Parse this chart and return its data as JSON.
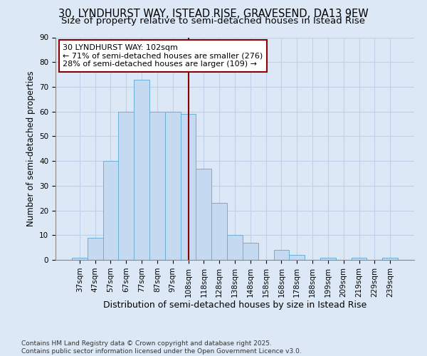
{
  "title": "30, LYNDHURST WAY, ISTEAD RISE, GRAVESEND, DA13 9EW",
  "subtitle": "Size of property relative to semi-detached houses in Istead Rise",
  "xlabel": "Distribution of semi-detached houses by size in Istead Rise",
  "ylabel": "Number of semi-detached properties",
  "bar_labels": [
    "37sqm",
    "47sqm",
    "57sqm",
    "67sqm",
    "77sqm",
    "87sqm",
    "97sqm",
    "108sqm",
    "118sqm",
    "128sqm",
    "138sqm",
    "148sqm",
    "158sqm",
    "168sqm",
    "178sqm",
    "188sqm",
    "199sqm",
    "209sqm",
    "219sqm",
    "229sqm",
    "239sqm"
  ],
  "bar_values": [
    1,
    9,
    40,
    60,
    73,
    60,
    60,
    59,
    37,
    23,
    10,
    7,
    0,
    4,
    2,
    0,
    1,
    0,
    1,
    0,
    1
  ],
  "bar_color": "#c5d9f0",
  "bar_edge_color": "#6baed6",
  "vline_color": "#8b0000",
  "annotation_line1": "30 LYNDHURST WAY: 102sqm",
  "annotation_line2": "← 71% of semi-detached houses are smaller (276)",
  "annotation_line3": "28% of semi-detached houses are larger (109) →",
  "annotation_box_color": "#ffffff",
  "annotation_box_edge": "#8b0000",
  "ylim": [
    0,
    90
  ],
  "yticks": [
    0,
    10,
    20,
    30,
    40,
    50,
    60,
    70,
    80,
    90
  ],
  "footer_text": "Contains HM Land Registry data © Crown copyright and database right 2025.\nContains public sector information licensed under the Open Government Licence v3.0.",
  "bg_color": "#dce8f5",
  "plot_bg_color": "#dce8f5",
  "grid_color": "#c0d0e8",
  "title_fontsize": 10.5,
  "subtitle_fontsize": 9.5,
  "xlabel_fontsize": 9,
  "ylabel_fontsize": 8.5,
  "tick_fontsize": 7.5,
  "annotation_fontsize": 8,
  "footer_fontsize": 6.5,
  "vline_bar_index": 7.0
}
